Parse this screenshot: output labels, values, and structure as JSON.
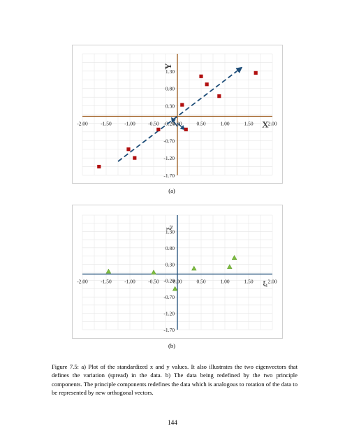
{
  "charts": [
    {
      "sublabel": "(a)",
      "axis_color": "#9c5a1c",
      "marker_color": "#b11010",
      "arrow_color": "#1f4e79",
      "x_axis_title": "X",
      "y_axis_title": "Y"
    },
    {
      "sublabel": "(b)",
      "axis_color": "#1f4e79",
      "marker_color": "#7fbf3f",
      "x_axis_title": "ξ₁",
      "y_axis_title": "ξ₂"
    }
  ],
  "chart_data": [
    {
      "type": "scatter",
      "x_ticks": [
        "-2.00",
        "-1.50",
        "-1.00",
        "-0.50",
        "0.00",
        "0.50",
        "1.00",
        "1.50",
        "2.00"
      ],
      "y_ticks": [
        "1.30",
        "0.80",
        "0.30",
        "-0.20",
        "-0.70",
        "-1.20",
        "-1.70"
      ],
      "xlim": [
        -2.0,
        2.0
      ],
      "ylim": [
        -1.7,
        1.8
      ],
      "grid": true,
      "points": [
        {
          "x": -1.65,
          "y": -1.45
        },
        {
          "x": -1.03,
          "y": -0.95
        },
        {
          "x": -0.9,
          "y": -1.2
        },
        {
          "x": -0.4,
          "y": -0.38
        },
        {
          "x": 0.1,
          "y": 0.33
        },
        {
          "x": 0.18,
          "y": -0.38
        },
        {
          "x": 0.5,
          "y": 1.15
        },
        {
          "x": 0.62,
          "y": 0.92
        },
        {
          "x": 0.88,
          "y": 0.58
        },
        {
          "x": 1.65,
          "y": 1.25
        }
      ],
      "vectors": [
        {
          "x1": -1.25,
          "y1": -1.3,
          "x2": 1.35,
          "y2": 1.4,
          "style": "dashed"
        },
        {
          "x1": 0.0,
          "y1": -0.3,
          "x2": -0.12,
          "y2": -0.05,
          "style": "solid"
        },
        {
          "x1": 0.0,
          "y1": -0.2,
          "x2": 0.15,
          "y2": -0.38,
          "style": "solid"
        }
      ]
    },
    {
      "type": "scatter",
      "x_ticks": [
        "-2.00",
        "-1.50",
        "-1.00",
        "-0.50",
        "0.00",
        "0.50",
        "1.00",
        "1.50",
        "2.00"
      ],
      "y_ticks": [
        "1.30",
        "0.80",
        "0.30",
        "-0.20",
        "-0.70",
        "-1.20",
        "-1.70"
      ],
      "xlim": [
        -2.0,
        2.0
      ],
      "ylim": [
        -1.7,
        1.8
      ],
      "grid": true,
      "points": [
        {
          "x": -1.45,
          "y": 0.08
        },
        {
          "x": -0.5,
          "y": 0.05
        },
        {
          "x": -0.05,
          "y": -0.45
        },
        {
          "x": 0.35,
          "y": 0.17
        },
        {
          "x": 1.1,
          "y": 0.22
        },
        {
          "x": 1.2,
          "y": 0.5
        }
      ],
      "vectors": []
    }
  ],
  "caption": "Figure 7.5: a) Plot of the standardized x and y values. It also illustrates the two eigenvectors that defines the variation (spread) in the data. b) The data being redefined by the two principle components. The principle components redefines the data which is analogous to rotation of the data to be represented by new orthogonal vectors.",
  "page_number": "144"
}
